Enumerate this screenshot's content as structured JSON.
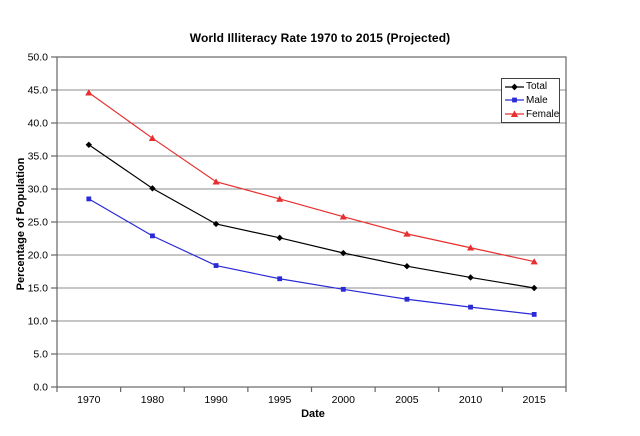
{
  "chart_data": {
    "type": "line",
    "title": "World Illiteracy Rate 1970 to 2015 (Projected)",
    "xlabel": "Date",
    "ylabel": "Percentage of Population",
    "categories": [
      "1970",
      "1980",
      "1990",
      "1995",
      "2000",
      "2005",
      "2010",
      "2015"
    ],
    "series": [
      {
        "name": "Total",
        "color": "#000000",
        "marker": "diamond",
        "values": [
          36.7,
          30.1,
          24.7,
          22.6,
          20.3,
          18.3,
          16.6,
          15.0
        ]
      },
      {
        "name": "Male",
        "color": "#2a2ad6",
        "marker": "square",
        "values": [
          28.5,
          22.9,
          18.4,
          16.4,
          14.8,
          13.3,
          12.1,
          11.0
        ]
      },
      {
        "name": "Female",
        "color": "#e82e2e",
        "marker": "triangle",
        "values": [
          44.6,
          37.7,
          31.1,
          28.5,
          25.8,
          23.2,
          21.1,
          19.0
        ]
      }
    ],
    "ylim": [
      0,
      50
    ],
    "ytick_step": 5,
    "ytick_labels": [
      "0.0",
      "5.0",
      "10.0",
      "15.0",
      "20.0",
      "25.0",
      "30.0",
      "35.0",
      "40.0",
      "45.0",
      "50.0"
    ],
    "grid": "horizontal",
    "gridline_color": "#8e8e8e",
    "axis_border_color": "#666666",
    "legend_position": "top-right"
  }
}
